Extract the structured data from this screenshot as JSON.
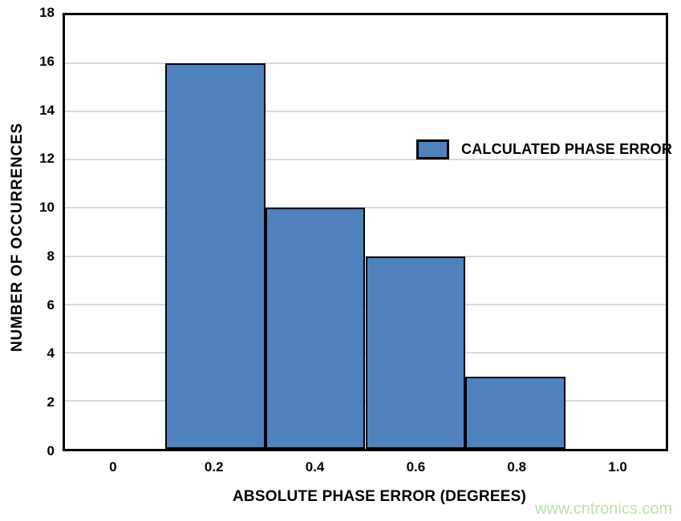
{
  "chart_data": {
    "type": "bar",
    "title": "",
    "xlabel": "ABSOLUTE PHASE ERROR (DEGREES)",
    "ylabel": "NUMBER OF OCCURRENCES",
    "categories": [
      "0",
      "0.2",
      "0.4",
      "0.6",
      "0.8",
      "1.0"
    ],
    "values": [
      0,
      16,
      10,
      8,
      3,
      0
    ],
    "ylim": [
      0,
      18
    ],
    "yticks": [
      "0",
      "2",
      "4",
      "6",
      "8",
      "10",
      "12",
      "14",
      "16",
      "18"
    ],
    "grid": "horizontal",
    "legend": {
      "label": "CALCULATED PHASE ERROR",
      "position": "inside-upper-middle",
      "swatch_color": "#4f81bd"
    },
    "bar_color": "#4f81bd",
    "bar_border_color": "#000000",
    "frame_color": "#000000",
    "gridline_color": "#d9d9d9",
    "text_color": "#000000",
    "background_color": "#ffffff"
  },
  "watermark": {
    "text": "www.cntronics.com",
    "color": "#b6e3aa"
  }
}
